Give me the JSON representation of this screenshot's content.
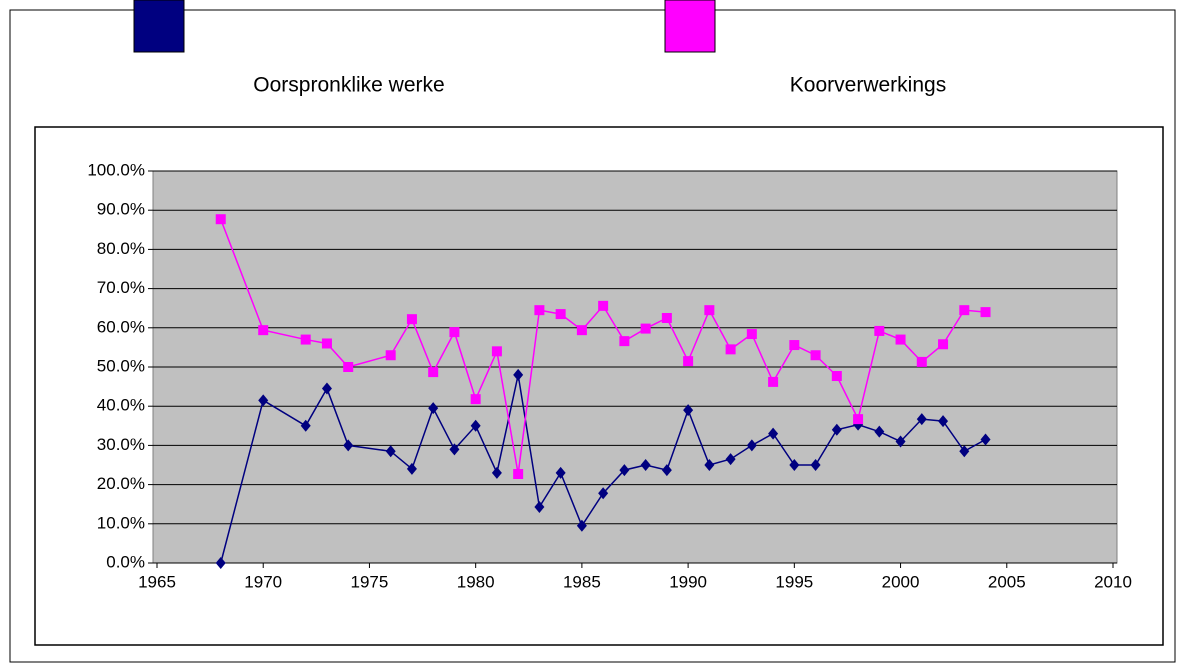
{
  "chart_data": {
    "type": "line",
    "x": [
      1968,
      1970,
      1972,
      1973,
      1974,
      1976,
      1977,
      1978,
      1979,
      1980,
      1981,
      1982,
      1983,
      1984,
      1985,
      1986,
      1987,
      1988,
      1989,
      1990,
      1991,
      1992,
      1993,
      1994,
      1995,
      1996,
      1997,
      1998,
      1999,
      2000,
      2001,
      2002,
      2003,
      2004
    ],
    "series": [
      {
        "name": "Oorspronklike werke",
        "color": "#000080",
        "marker": "diamond",
        "values": [
          0,
          41.5,
          35,
          44.5,
          30,
          28.5,
          24,
          39.5,
          29,
          35,
          23,
          48,
          14.3,
          23,
          9.5,
          17.8,
          23.7,
          25,
          23.7,
          39,
          25,
          26.5,
          30,
          33,
          25,
          25,
          34,
          35.3,
          33.5,
          31,
          36.7,
          36.2,
          28.5,
          31.5
        ]
      },
      {
        "name": "Koorverwerkings",
        "color": "#ff00ff",
        "marker": "square",
        "values": [
          87.7,
          59.4,
          57,
          56,
          50,
          53,
          62.2,
          48.7,
          58.9,
          41.8,
          54,
          22.7,
          64.5,
          63.5,
          59.4,
          65.6,
          56.6,
          59.8,
          62.5,
          51.5,
          64.5,
          54.5,
          58.4,
          46.2,
          55.6,
          53,
          47.7,
          36.7,
          59.2,
          57,
          51.3,
          55.8,
          64.5,
          64
        ]
      }
    ],
    "xlim": [
      1965,
      2010
    ],
    "xticks": [
      1965,
      1970,
      1975,
      1980,
      1985,
      1990,
      1995,
      2000,
      2005,
      2010
    ],
    "ylim": [
      0,
      100
    ],
    "yticks": [
      {
        "value": 0,
        "label": "0.0%"
      },
      {
        "value": 10,
        "label": "10.0%"
      },
      {
        "value": 20,
        "label": "20.0%"
      },
      {
        "value": 30,
        "label": "30.0%"
      },
      {
        "value": 40,
        "label": "40.0%"
      },
      {
        "value": 50,
        "label": "50.0%"
      },
      {
        "value": 60,
        "label": "60.0%"
      },
      {
        "value": 70,
        "label": "70.0%"
      },
      {
        "value": 80,
        "label": "80.0%"
      },
      {
        "value": 90,
        "label": "90.0%"
      },
      {
        "value": 100,
        "label": "100.0%"
      }
    ],
    "grid": true,
    "legend": "top",
    "plot_background": "#c0c0c0"
  }
}
